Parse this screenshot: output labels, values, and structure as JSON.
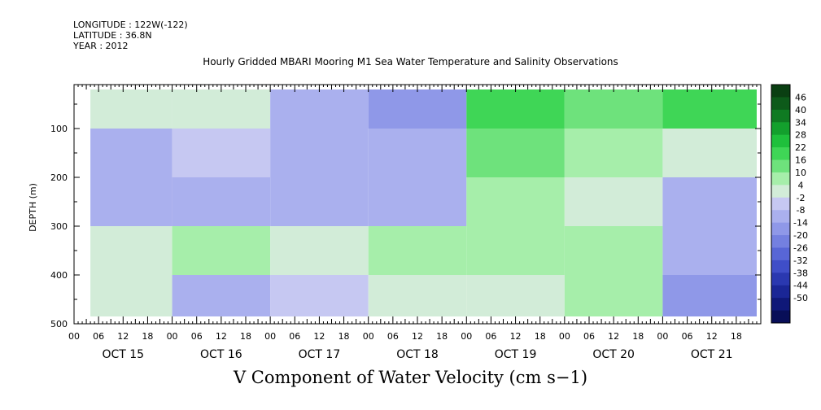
{
  "header": {
    "longitude": "LONGITUDE : 122W(-122)",
    "latitude": "LATITUDE : 36.8N",
    "year": "YEAR : 2012"
  },
  "chart_data": {
    "type": "heatmap",
    "title": "Hourly Gridded MBARI Mooring M1 Sea Water Temperature and Salinity Observations",
    "xlabel": "V Component of Water Velocity (cm s−1)",
    "ylabel": "DEPTH (m)",
    "ylim": [
      500,
      10
    ],
    "y_ticks": [
      100,
      200,
      300,
      400,
      500
    ],
    "y_minor_ticks": [
      50,
      150,
      250,
      350,
      450
    ],
    "x_days": [
      "OCT 15",
      "OCT 16",
      "OCT 17",
      "OCT 18",
      "OCT 19",
      "OCT 20",
      "OCT 21"
    ],
    "x_hour_labels": [
      "00",
      "06",
      "12",
      "18"
    ],
    "x_range_hours": [
      0,
      168
    ],
    "data_start_hour": 4,
    "data_end_hour": 167,
    "data_depth_range": [
      20,
      485
    ],
    "colorbar": {
      "labels": [
        "46",
        "40",
        "34",
        "28",
        "22",
        "16",
        "10",
        "4",
        "-2",
        "-8",
        "-14",
        "-20",
        "-26",
        "-32",
        "-38",
        "-44",
        "-50"
      ],
      "colors": [
        "#0a3f12",
        "#0d5a1a",
        "#0f7a22",
        "#13a02d",
        "#1fc03c",
        "#3fd656",
        "#6ee27c",
        "#a6eeaa",
        "#d2ecd8",
        "#c6c8f2",
        "#aab0ee",
        "#8f98e8",
        "#7480e0",
        "#5866d6",
        "#3f4ec8",
        "#2a38b0",
        "#1a2696",
        "#0f1878",
        "#080e58"
      ]
    },
    "day_values_by_depth": {
      "depths_m": [
        50,
        150,
        250,
        350,
        450
      ],
      "OCT 15": [
        2,
        -6,
        -8,
        6,
        3
      ],
      "OCT 16": [
        4,
        -4,
        -10,
        8,
        -6
      ],
      "OCT 17": [
        -10,
        -8,
        -6,
        4,
        -4
      ],
      "OCT 18": [
        -14,
        -8,
        -6,
        8,
        6
      ],
      "OCT 19": [
        20,
        14,
        8,
        10,
        6
      ],
      "OCT 20": [
        16,
        8,
        4,
        12,
        8
      ],
      "OCT 21": [
        22,
        4,
        -6,
        -10,
        -12
      ]
    },
    "grid": false,
    "legend": "right"
  }
}
